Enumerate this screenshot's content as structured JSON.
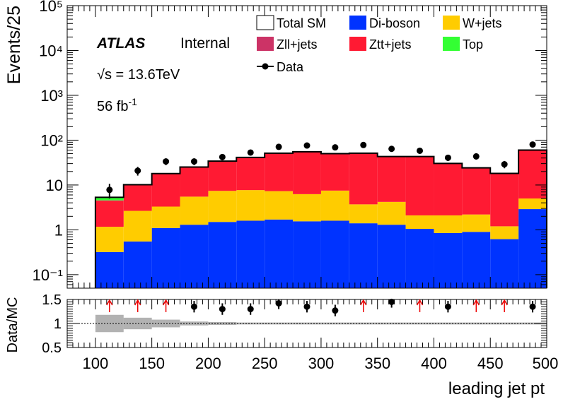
{
  "chart_data": [
    {
      "type": "bar",
      "stacked": true,
      "log_y": true,
      "ylabel": "Events/25",
      "xlim": [
        75,
        500
      ],
      "ylim": [
        0.05,
        100000
      ],
      "y_tick_labels": [
        "10⁻¹",
        "1",
        "10",
        "10²",
        "10³",
        "10⁴",
        "10⁵"
      ],
      "bin_edges": [
        100,
        125,
        150,
        175,
        200,
        225,
        250,
        275,
        300,
        325,
        350,
        375,
        400,
        425,
        450,
        475,
        500
      ],
      "series": [
        {
          "name": "Di-boson",
          "color": "#0033ff",
          "values": [
            0.32,
            0.55,
            1.1,
            1.3,
            1.5,
            1.6,
            1.7,
            1.55,
            1.6,
            1.4,
            1.3,
            1.05,
            0.85,
            0.9,
            0.62,
            2.9
          ]
        },
        {
          "name": "W+jets",
          "color": "#ffcc00",
          "values": [
            0.85,
            2.1,
            2.2,
            4.2,
            5.9,
            6.1,
            5.6,
            4.7,
            5.9,
            2.3,
            2.9,
            1.05,
            1.25,
            1.3,
            0.58,
            2.1
          ]
        },
        {
          "name": "Ztt+jets",
          "color": "#ff1a33",
          "values": [
            3.3,
            7.3,
            14.5,
            19.5,
            26.6,
            33.3,
            43.7,
            48.8,
            42.5,
            47.3,
            38.8,
            40.9,
            28.0,
            21.8,
            16.8,
            55
          ]
        },
        {
          "name": "Zll+jets",
          "color": "#cc3366",
          "values": [
            0.08,
            0.04,
            0.05,
            0.05,
            0.05,
            0.05,
            0.05,
            0.05,
            0.05,
            0.05,
            0.05,
            0.05,
            0.05,
            0.05,
            0.05,
            0.05
          ]
        },
        {
          "name": "Top",
          "color": "#33ff33",
          "values": [
            0.75,
            0.15,
            0.1,
            0.1,
            0.1,
            0.1,
            0.1,
            0.1,
            0.1,
            0.1,
            0.1,
            0.1,
            0.1,
            0.1,
            0.1,
            0.1
          ]
        }
      ],
      "data_points": {
        "name": "Data",
        "x": [
          112.5,
          137.5,
          162.5,
          187.5,
          212.5,
          237.5,
          262.5,
          287.5,
          312.5,
          337.5,
          362.5,
          387.5,
          412.5,
          437.5,
          462.5,
          487.5
        ],
        "y": [
          7.8,
          20.8,
          33.5,
          33.5,
          42,
          53,
          71,
          76,
          69,
          78,
          64,
          58,
          40.5,
          43.5,
          29,
          80
        ]
      },
      "legend_entries": [
        "Total SM",
        "Di-boson",
        "W+jets",
        "Zll+jets",
        "Ztt+jets",
        "Top",
        "Data"
      ],
      "annotations": {
        "experiment": "ATLAS",
        "status": "Internal",
        "energy": "√s = 13.6TeV",
        "luminosity": "56 fb",
        "luminosity_exponent": "-1"
      }
    },
    {
      "type": "scatter",
      "ylabel": "Data/MC",
      "xlabel": "leading jet pt",
      "xlim": [
        75,
        500
      ],
      "ylim": [
        0.5,
        1.5
      ],
      "y_ticks": [
        0.5,
        1,
        1.5
      ],
      "y_tick_labels": [
        "0.5",
        "1",
        "1.5"
      ],
      "x_ticks": [
        100,
        150,
        200,
        250,
        300,
        350,
        400,
        450,
        500
      ],
      "x_tick_labels": [
        "100",
        "150",
        "200",
        "250",
        "300",
        "350",
        "400",
        "450",
        "500"
      ],
      "reference_line": 1,
      "points": {
        "x": [
          187.5,
          212.5,
          237.5,
          262.5,
          287.5,
          312.5,
          362.5,
          412.5,
          487.5
        ],
        "y": [
          1.35,
          1.3,
          1.3,
          1.42,
          1.35,
          1.27,
          1.45,
          1.35,
          1.35
        ]
      },
      "off_scale_arrows_x": [
        112.5,
        137.5,
        162.5,
        337.5,
        387.5,
        437.5,
        462.5
      ],
      "uncertainty_band": {
        "x": [
          112.5,
          137.5,
          162.5,
          187.5,
          212.5,
          237.5,
          262.5,
          287.5,
          312.5,
          337.5,
          362.5,
          387.5,
          412.5,
          437.5,
          462.5,
          487.5
        ],
        "half_width": [
          0.18,
          0.12,
          0.08,
          0.04,
          0.03,
          0.02,
          0.02,
          0.02,
          0.02,
          0.02,
          0.02,
          0.02,
          0.02,
          0.02,
          0.02,
          0.02
        ]
      }
    }
  ]
}
